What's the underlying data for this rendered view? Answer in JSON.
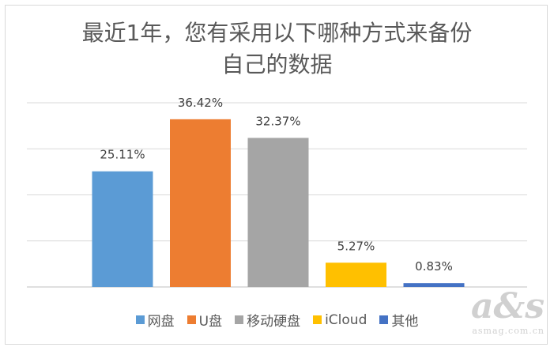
{
  "chart_data": {
    "type": "bar",
    "title_lines": [
      "最近1年，您有采用以下哪种方式来备份",
      "自己的数据"
    ],
    "categories": [
      "网盘",
      "U盘",
      "移动硬盘",
      "iCloud",
      "其他"
    ],
    "values": [
      25.11,
      36.42,
      32.37,
      5.27,
      0.83
    ],
    "data_labels": [
      "25.11%",
      "36.42%",
      "32.37%",
      "5.27%",
      "0.83%"
    ],
    "colors": [
      "#5b9bd5",
      "#ed7d31",
      "#a5a5a5",
      "#ffc000",
      "#4472c4"
    ],
    "ylim": [
      0,
      40
    ],
    "gridlines": [
      0,
      10,
      20,
      30,
      40
    ],
    "grid": true,
    "legend_position": "bottom"
  },
  "watermark": {
    "mark": "a&s",
    "site": "asmag.com.cn"
  }
}
